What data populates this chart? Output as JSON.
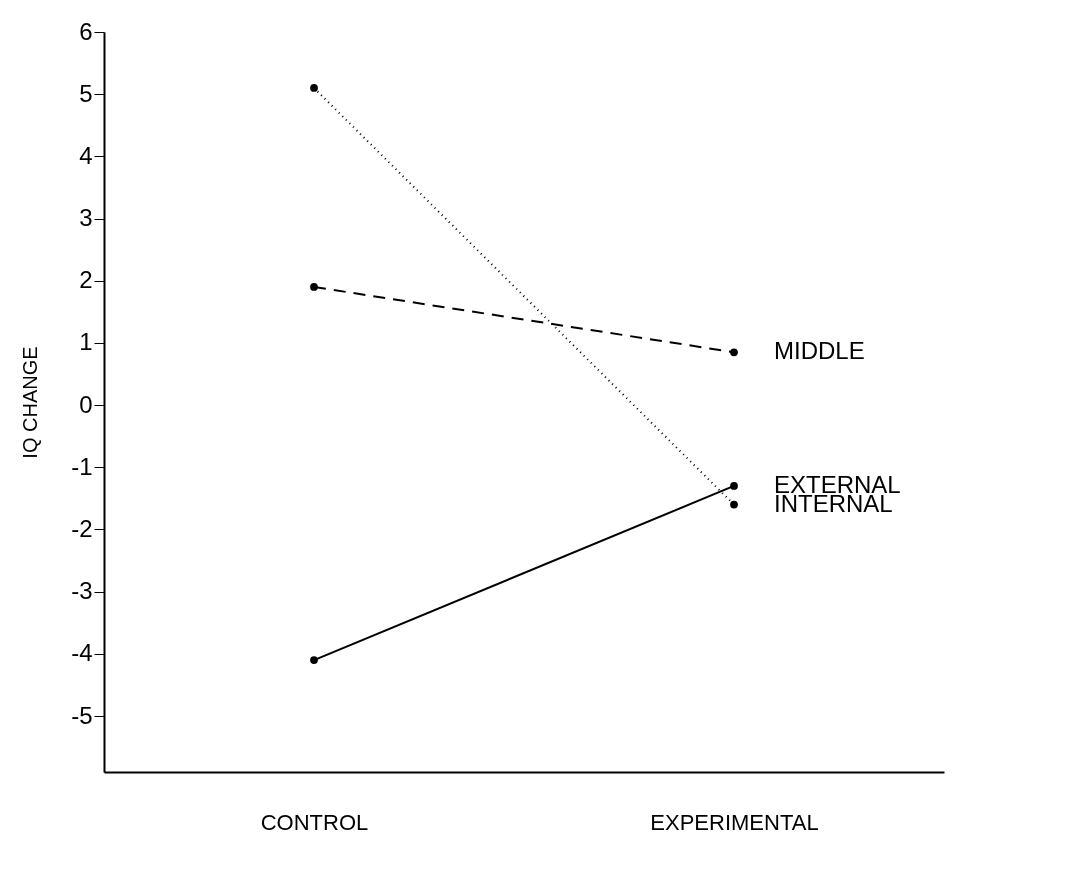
{
  "chart_data": {
    "type": "line",
    "ylabel": "IQ CHANGE",
    "categories": [
      "CONTROL",
      "EXPERIMENTAL"
    ],
    "ylim": [
      -5.9,
      6
    ],
    "yticks": [
      -5,
      -4,
      -3,
      -2,
      -1,
      0,
      1,
      2,
      3,
      4,
      5,
      6
    ],
    "grid": false,
    "legend": false,
    "marker": "circle",
    "series": [
      {
        "name": "MIDDLE",
        "color": "#000000",
        "values": [
          1.9,
          0.85
        ],
        "line_style": "dashed"
      },
      {
        "name": "EXTERNAL",
        "color": "#000000",
        "values": [
          -4.1,
          -1.3
        ],
        "line_style": "solid"
      },
      {
        "name": "INTERNAL",
        "color": "#000000",
        "values": [
          5.1,
          -1.6
        ],
        "line_style": "dotted"
      }
    ]
  }
}
